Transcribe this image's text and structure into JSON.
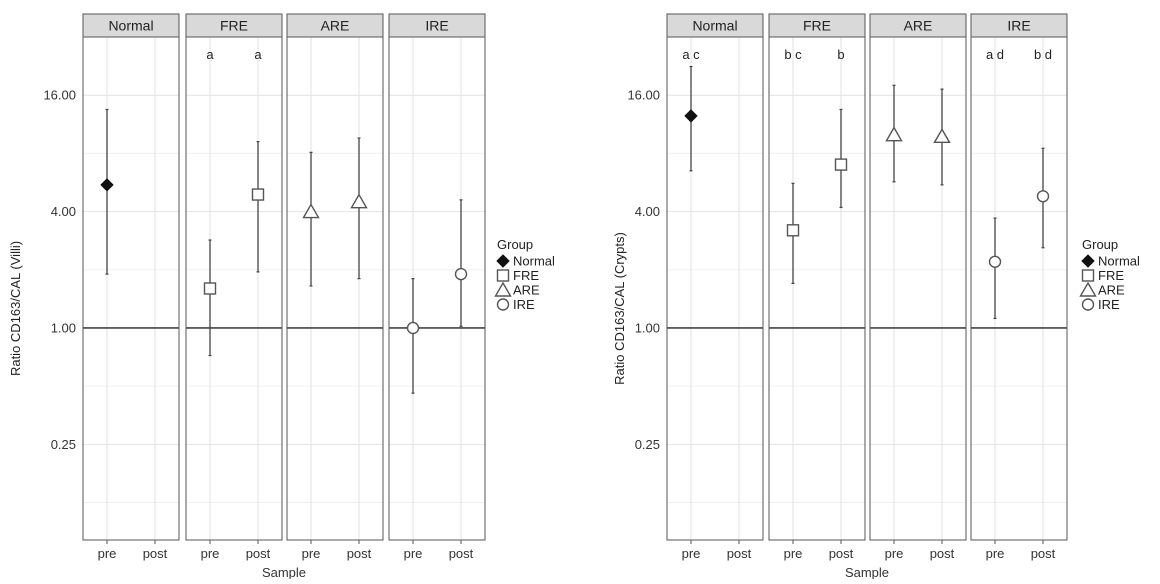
{
  "chart_data": [
    {
      "type": "scatter",
      "ylabel": "Ratio CD163/CAL (Villi)",
      "xlabel": "Sample",
      "y_scale": "log2",
      "ylim": [
        0.08,
        32
      ],
      "y_ticks": [
        {
          "value": 16,
          "label": "16.00"
        },
        {
          "value": 4,
          "label": "4.00"
        },
        {
          "value": 1,
          "label": "1.00"
        },
        {
          "value": 0.25,
          "label": "0.25"
        }
      ],
      "reference_line": 1,
      "categories": [
        "pre",
        "post"
      ],
      "legend": {
        "title": "Group",
        "position": "right",
        "entries": [
          {
            "label": "Normal",
            "symbol": "diamond-filled"
          },
          {
            "label": "FRE",
            "symbol": "square-open"
          },
          {
            "label": "ARE",
            "symbol": "triangle-open"
          },
          {
            "label": "IRE",
            "symbol": "circle-open"
          }
        ]
      },
      "panels": [
        {
          "title": "Normal",
          "symbol": "diamond-filled",
          "points": [
            {
              "x": "pre",
              "y": 5.5,
              "low": 1.9,
              "high": 13.5,
              "label": ""
            }
          ]
        },
        {
          "title": "FRE",
          "symbol": "square-open",
          "points": [
            {
              "x": "pre",
              "y": 1.6,
              "low": 0.72,
              "high": 2.85,
              "label": "a"
            },
            {
              "x": "post",
              "y": 4.9,
              "low": 1.95,
              "high": 9.2,
              "label": "a"
            }
          ]
        },
        {
          "title": "ARE",
          "symbol": "triangle-open",
          "points": [
            {
              "x": "pre",
              "y": 4.0,
              "low": 1.65,
              "high": 8.1,
              "label": ""
            },
            {
              "x": "post",
              "y": 4.5,
              "low": 1.8,
              "high": 9.6,
              "label": ""
            }
          ]
        },
        {
          "title": "IRE",
          "symbol": "circle-open",
          "points": [
            {
              "x": "pre",
              "y": 1.0,
              "low": 0.46,
              "high": 1.8,
              "label": ""
            },
            {
              "x": "post",
              "y": 1.9,
              "low": 1.02,
              "high": 4.6,
              "label": ""
            }
          ]
        }
      ]
    },
    {
      "type": "scatter",
      "ylabel": "Ratio CD163/CAL (Crypts)",
      "xlabel": "Sample",
      "y_scale": "log2",
      "ylim": [
        0.08,
        32
      ],
      "y_ticks": [
        {
          "value": 16,
          "label": "16.00"
        },
        {
          "value": 4,
          "label": "4.00"
        },
        {
          "value": 1,
          "label": "1.00"
        },
        {
          "value": 0.25,
          "label": "0.25"
        }
      ],
      "reference_line": 1,
      "categories": [
        "pre",
        "post"
      ],
      "legend": {
        "title": "Group",
        "position": "right",
        "entries": [
          {
            "label": "Normal",
            "symbol": "diamond-filled"
          },
          {
            "label": "FRE",
            "symbol": "square-open"
          },
          {
            "label": "ARE",
            "symbol": "triangle-open"
          },
          {
            "label": "IRE",
            "symbol": "circle-open"
          }
        ]
      },
      "panels": [
        {
          "title": "Normal",
          "symbol": "diamond-filled",
          "points": [
            {
              "x": "pre",
              "y": 12.5,
              "low": 6.5,
              "high": 22.5,
              "label": "a c"
            }
          ]
        },
        {
          "title": "FRE",
          "symbol": "square-open",
          "points": [
            {
              "x": "pre",
              "y": 3.2,
              "low": 1.7,
              "high": 5.6,
              "label": "b c"
            },
            {
              "x": "post",
              "y": 7.0,
              "low": 4.2,
              "high": 13.5,
              "label": "b"
            }
          ]
        },
        {
          "title": "ARE",
          "symbol": "triangle-open",
          "points": [
            {
              "x": "pre",
              "y": 10.0,
              "low": 5.7,
              "high": 18.0,
              "label": ""
            },
            {
              "x": "post",
              "y": 9.8,
              "low": 5.5,
              "high": 17.2,
              "label": ""
            }
          ]
        },
        {
          "title": "IRE",
          "symbol": "circle-open",
          "points": [
            {
              "x": "pre",
              "y": 2.2,
              "low": 1.12,
              "high": 3.7,
              "label": "a d"
            },
            {
              "x": "post",
              "y": 4.8,
              "low": 2.6,
              "high": 8.5,
              "label": "b d"
            }
          ]
        }
      ]
    }
  ]
}
